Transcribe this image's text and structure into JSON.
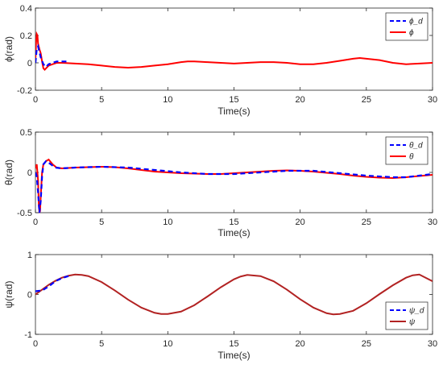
{
  "colors": {
    "reference_line": "#0000ff",
    "actual_line_phi_theta": "#ff0000",
    "actual_line_psi": "#b22222",
    "axes": "#262626",
    "tick_label": "#262626"
  },
  "chart_data": [
    {
      "type": "line",
      "xlabel": "Time(s)",
      "ylabel": "ϕ(rad)",
      "xlim": [
        0,
        30
      ],
      "ylim": [
        -0.2,
        0.4
      ],
      "xticks": [
        0,
        5,
        10,
        15,
        20,
        25,
        30
      ],
      "yticks": [
        -0.2,
        0,
        0.2,
        0.4
      ],
      "xtick_labels": [
        "0",
        "5",
        "10",
        "15",
        "20",
        "25",
        "30"
      ],
      "ytick_labels": [
        "-0.2",
        "0",
        "0.2",
        "0.4"
      ],
      "grid": false,
      "legend": "top-right",
      "series": [
        {
          "name": "ϕ_d",
          "style": "dashed",
          "color": "#0000ff",
          "x": [
            0,
            0.1,
            0.2,
            0.3,
            0.4,
            0.6,
            0.8,
            1.0,
            1.3,
            1.6,
            2.0,
            2.5
          ],
          "y": [
            0.0,
            0.1,
            0.12,
            0.08,
            0.04,
            -0.01,
            -0.03,
            -0.01,
            0.0,
            0.01,
            0.01,
            0.01
          ]
        },
        {
          "name": "ϕ",
          "style": "solid",
          "color": "#ff0000",
          "x": [
            0,
            0.05,
            0.1,
            0.15,
            0.2,
            0.25,
            0.3,
            0.4,
            0.5,
            0.6,
            0.7,
            0.8,
            1.0,
            1.3,
            1.6,
            2.0,
            3.0,
            4.0,
            5.0,
            6.0,
            7.0,
            8.0,
            9.0,
            10.0,
            11.0,
            11.5,
            12.0,
            13.0,
            14.0,
            15.0,
            16.0,
            17.0,
            18.0,
            19.0,
            20.0,
            21.0,
            22.0,
            23.0,
            24.0,
            24.5,
            25.0,
            26.0,
            27.0,
            28.0,
            29.0,
            30.0
          ],
          "y": [
            0.02,
            0.15,
            0.21,
            0.2,
            0.14,
            0.12,
            0.1,
            0.07,
            0.01,
            -0.04,
            -0.05,
            -0.04,
            -0.02,
            -0.01,
            0.0,
            0.0,
            -0.005,
            -0.01,
            -0.02,
            -0.03,
            -0.035,
            -0.03,
            -0.02,
            -0.01,
            0.005,
            0.01,
            0.01,
            0.005,
            0.0,
            -0.005,
            0.0,
            0.005,
            0.005,
            0.0,
            -0.01,
            -0.01,
            0.0,
            0.015,
            0.03,
            0.035,
            0.03,
            0.02,
            0.0,
            -0.01,
            -0.005,
            0.0
          ]
        }
      ]
    },
    {
      "type": "line",
      "xlabel": "Time(s)",
      "ylabel": "θ(rad)",
      "xlim": [
        0,
        30
      ],
      "ylim": [
        -0.5,
        0.5
      ],
      "xticks": [
        0,
        5,
        10,
        15,
        20,
        25,
        30
      ],
      "yticks": [
        -0.5,
        0,
        0.5
      ],
      "xtick_labels": [
        "0",
        "5",
        "10",
        "15",
        "20",
        "25",
        "30"
      ],
      "ytick_labels": [
        "-0.5",
        "0",
        "0.5"
      ],
      "grid": false,
      "legend": "top-right",
      "series": [
        {
          "name": "θ_d",
          "style": "dashed",
          "color": "#0000ff",
          "x": [
            0,
            0.1,
            0.2,
            0.3,
            0.4,
            0.5,
            0.6,
            0.8,
            1.0,
            1.5,
            2.0,
            3.0,
            5.0,
            7.0,
            9.0,
            11.0,
            13.0,
            15.0,
            17.0,
            19.0,
            21.0,
            23.0,
            25.0,
            27.0,
            28.0,
            29.0,
            30.0
          ],
          "y": [
            0.0,
            -0.05,
            -0.25,
            -0.5,
            -0.35,
            -0.05,
            0.1,
            0.14,
            0.12,
            0.06,
            0.05,
            0.06,
            0.07,
            0.06,
            0.03,
            0.0,
            -0.02,
            -0.02,
            0.0,
            0.02,
            0.02,
            -0.01,
            -0.04,
            -0.06,
            -0.06,
            -0.04,
            -0.02
          ]
        },
        {
          "name": "θ",
          "style": "solid",
          "color": "#ff0000",
          "x": [
            0,
            0.1,
            0.2,
            0.25,
            0.3,
            0.35,
            0.4,
            0.5,
            0.6,
            0.8,
            1.0,
            1.3,
            1.6,
            2.0,
            3.0,
            4.0,
            5.0,
            6.0,
            7.0,
            8.0,
            9.0,
            10.0,
            11.0,
            12.0,
            13.0,
            14.0,
            15.0,
            16.0,
            17.0,
            18.0,
            19.0,
            20.0,
            21.0,
            22.0,
            23.0,
            24.0,
            25.0,
            26.0,
            27.0,
            28.0,
            29.0,
            30.0
          ],
          "y": [
            0.05,
            0.1,
            -0.1,
            -0.4,
            -0.5,
            -0.48,
            -0.3,
            0.0,
            0.1,
            0.14,
            0.16,
            0.1,
            0.06,
            0.05,
            0.06,
            0.065,
            0.07,
            0.065,
            0.05,
            0.03,
            0.01,
            0.0,
            -0.01,
            -0.015,
            -0.02,
            -0.02,
            -0.01,
            0.0,
            0.01,
            0.02,
            0.025,
            0.02,
            0.01,
            -0.005,
            -0.02,
            -0.04,
            -0.055,
            -0.065,
            -0.07,
            -0.06,
            -0.045,
            -0.03
          ]
        }
      ]
    },
    {
      "type": "line",
      "xlabel": "Time(s)",
      "ylabel": "ψ(rad)",
      "xlim": [
        0,
        30
      ],
      "ylim": [
        -1,
        1
      ],
      "xticks": [
        0,
        5,
        10,
        15,
        20,
        25,
        30
      ],
      "yticks": [
        -1,
        0,
        1
      ],
      "xtick_labels": [
        "0",
        "5",
        "10",
        "15",
        "20",
        "25",
        "30"
      ],
      "ytick_labels": [
        "-1",
        "0",
        "1"
      ],
      "grid": false,
      "legend": "bottom-right",
      "series": [
        {
          "name": "ψ_d",
          "style": "dashed",
          "color": "#0000ff",
          "x": [
            0,
            0.5,
            1.0,
            1.5,
            2.0,
            2.5
          ],
          "y": [
            0.08,
            0.1,
            0.2,
            0.33,
            0.41,
            0.46
          ]
        },
        {
          "name": "ψ",
          "style": "solid",
          "color": "#b22222",
          "x": [
            0,
            0.25,
            0.5,
            1.0,
            1.5,
            2.0,
            2.5,
            3.0,
            3.5,
            4.0,
            5.0,
            6.0,
            7.0,
            8.0,
            9.0,
            9.5,
            10.0,
            11.0,
            12.0,
            13.0,
            14.0,
            15.0,
            15.5,
            16.0,
            17.0,
            18.0,
            19.0,
            20.0,
            21.0,
            22.0,
            22.5,
            23.0,
            24.0,
            25.0,
            26.0,
            27.0,
            28.0,
            28.5,
            29.0,
            30.0
          ],
          "y": [
            0.0,
            0.06,
            0.12,
            0.24,
            0.34,
            0.42,
            0.47,
            0.5,
            0.49,
            0.46,
            0.31,
            0.1,
            -0.13,
            -0.33,
            -0.46,
            -0.49,
            -0.49,
            -0.43,
            -0.27,
            -0.05,
            0.18,
            0.38,
            0.45,
            0.49,
            0.46,
            0.33,
            0.12,
            -0.12,
            -0.33,
            -0.47,
            -0.5,
            -0.49,
            -0.41,
            -0.22,
            0.01,
            0.23,
            0.42,
            0.48,
            0.5,
            0.33
          ]
        }
      ]
    }
  ]
}
